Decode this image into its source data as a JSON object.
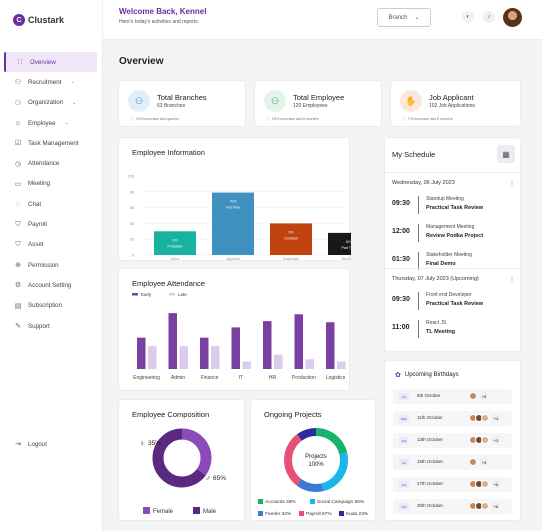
{
  "app": {
    "name": "Clustark",
    "logo_letter": "C"
  },
  "sidebar": {
    "items": [
      {
        "label": "Overview",
        "icon": "grid-icon",
        "glyph": "∷",
        "active": true,
        "chevron": false
      },
      {
        "label": "Recruitment",
        "icon": "users-icon",
        "glyph": "⚇",
        "chevron": true
      },
      {
        "label": "Organization",
        "icon": "org-icon",
        "glyph": "⚆",
        "chevron": true
      },
      {
        "label": "Employee",
        "icon": "people-icon",
        "glyph": "☺",
        "chevron": true
      },
      {
        "label": "Task Management",
        "icon": "task-icon",
        "glyph": "☑",
        "chevron": false
      },
      {
        "label": "Attendance",
        "icon": "clock-icon",
        "glyph": "◷",
        "chevron": false
      },
      {
        "label": "Meeting",
        "icon": "video-icon",
        "glyph": "▭",
        "chevron": false
      },
      {
        "label": "Chat",
        "icon": "chat-icon",
        "glyph": "◌",
        "chevron": false
      },
      {
        "label": "Payroll",
        "icon": "shield-icon",
        "glyph": "⛉",
        "chevron": false
      },
      {
        "label": "Asset",
        "icon": "asset-icon",
        "glyph": "⛉",
        "chevron": false
      },
      {
        "label": "Permission",
        "icon": "globe-icon",
        "glyph": "⊕",
        "chevron": false
      },
      {
        "label": "Account Setting",
        "icon": "gear-icon",
        "glyph": "⚙",
        "chevron": false
      },
      {
        "label": "Subscription",
        "icon": "card-icon",
        "glyph": "▤",
        "chevron": false
      },
      {
        "label": "Support",
        "icon": "support-icon",
        "glyph": "✎",
        "chevron": false
      }
    ],
    "logout": "Logout"
  },
  "header": {
    "welcome": "Welcome Back, Kennel",
    "subtitle": "Here's today's activities and reports.",
    "branch": "Branch"
  },
  "page_title": "Overview",
  "stats": [
    {
      "title": "Total Branches",
      "sub": "63 Branches",
      "foot": "10% increase last quarter",
      "icon": "branch-icon",
      "glyph": "⚇",
      "color": "#3b82c4",
      "bg": "#e3eefb"
    },
    {
      "title": "Total Employee",
      "sub": "120 Employees",
      "foot": "15% increase last 6 months",
      "icon": "employee-icon",
      "glyph": "⚇",
      "color": "#3a9a5b",
      "bg": "#e2f3e8"
    },
    {
      "title": "Job Applicant",
      "sub": "102 Job Applications",
      "foot": "7% increase last 6 months",
      "icon": "applicant-icon",
      "glyph": "✋",
      "color": "#e07040",
      "bg": "#fde6dc"
    }
  ],
  "employee_info": {
    "title": "Employee Information",
    "chart_data": {
      "type": "bar",
      "categories": [
        "Active",
        "Applicant",
        "Suspended",
        "Terminated"
      ],
      "values": [
        30,
        79,
        40,
        28
      ],
      "bar_labels": [
        {
          "pct": "0%",
          "text": "Probation"
        },
        {
          "pct": "70%",
          "text": "Full Time"
        },
        {
          "pct": "0%",
          "text": "Contract"
        },
        {
          "pct": "10%",
          "text": "Part Time"
        }
      ],
      "colors": [
        "#18b3a0",
        "#3f8fbf",
        "#c0430f",
        "#181818"
      ],
      "yticks": [
        "100",
        "80",
        "60",
        "40",
        "20",
        "0"
      ],
      "ylim": [
        0,
        100
      ]
    }
  },
  "attendance": {
    "title": "Employee Attendance",
    "chart_data": {
      "type": "bar",
      "categories": [
        "Engineering",
        "Admin",
        "Finance",
        "IT",
        "HR",
        "Production",
        "Logistics"
      ],
      "series": [
        {
          "name": "Early",
          "color": "#7b3fa0",
          "values": [
            55,
            98,
            55,
            73,
            84,
            96,
            82
          ]
        },
        {
          "name": "Late",
          "color": "#dccbec",
          "values": [
            40,
            40,
            40,
            13,
            25,
            17,
            13
          ]
        }
      ]
    }
  },
  "composition": {
    "title": "Employee Composition",
    "chart_data": {
      "type": "pie",
      "categories": [
        "Female",
        "Male"
      ],
      "values": [
        35,
        65
      ],
      "labels": [
        "35%",
        "65%"
      ],
      "colors": [
        "#8a4bb8",
        "#5a2a80"
      ]
    }
  },
  "projects": {
    "title": "Ongoing Projects",
    "center": "Projects",
    "center_pct": "100%",
    "chart_data": {
      "type": "pie",
      "categories": [
        "Accounts",
        "Social Campaign",
        "Feeder",
        "Payroll",
        "Kuda"
      ],
      "values": [
        48,
        56,
        32,
        67,
        23
      ],
      "legend": [
        "Accounts 48%",
        "Social Campaign 56%",
        "Feeder 32%",
        "Payroll 67%",
        "Kuda 23%"
      ],
      "colors": [
        "#18b36a",
        "#1ab8e8",
        "#3a7bd5",
        "#e8507a",
        "#2b2b9b"
      ]
    }
  },
  "schedule": {
    "title": "My Schedule",
    "days": [
      {
        "date": "Wednesday, 06 July 2023",
        "items": [
          {
            "time": "09:30",
            "label": "Standup Meeting",
            "name": "Practical Task Review"
          },
          {
            "time": "12:00",
            "label": "Management Meeting",
            "name": "Review Podka Project"
          },
          {
            "time": "01:30",
            "label": "Stakeholder Meeting",
            "name": "Final Demo"
          }
        ]
      },
      {
        "date": "Thursday, 07 July 2023 (Upcoming)",
        "items": [
          {
            "time": "09:30",
            "label": "Front end Developer",
            "name": "Practical Task Review"
          },
          {
            "time": "11:00",
            "label": "React JS",
            "name": "TL Meeting"
          }
        ]
      }
    ]
  },
  "birthdays": {
    "title": "Upcoming Birthdays",
    "rows": [
      {
        "badge": "Fri",
        "date": "8th October",
        "plus": "+5"
      },
      {
        "badge": "Mon",
        "date": "11th October",
        "plus": "+4"
      },
      {
        "badge": "Tue",
        "date": "13th October",
        "plus": "+3"
      },
      {
        "badge": "Fri",
        "date": "15th October",
        "plus": "+5"
      },
      {
        "badge": "Tue",
        "date": "27th October",
        "plus": "+6"
      },
      {
        "badge": "Thu",
        "date": "30th October",
        "plus": "+6"
      }
    ]
  }
}
